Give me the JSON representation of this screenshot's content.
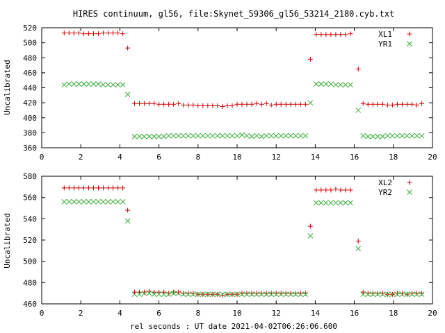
{
  "chart_data": {
    "title": "HIRES continuum, gl56, file:Skynet_59306_gl56_53214_2180.cyb.txt",
    "xlabel": "rel seconds : UT date 2021-04-02T06:26:06.600",
    "colors": {
      "series_a": "#cc0000",
      "series_b": "#33aa33",
      "axes": "#000000"
    },
    "panels": [
      {
        "type": "scatter",
        "ylabel": "Uncalibrated",
        "xlim": [
          0,
          20
        ],
        "ylim": [
          360,
          520
        ],
        "x_ticks": [
          "0",
          "2",
          "4",
          "6",
          "8",
          "10",
          "12",
          "14",
          "16",
          "18",
          "20"
        ],
        "y_ticks": [
          "360",
          "380",
          "400",
          "420",
          "440",
          "460",
          "480",
          "500",
          "520"
        ],
        "grid": false,
        "legend_position": "top-right",
        "series": [
          {
            "name": "XL1",
            "marker": "plus",
            "x": [
              1.15,
              1.4,
              1.65,
              1.9,
              2.15,
              2.4,
              2.65,
              2.9,
              3.15,
              3.4,
              3.65,
              3.9,
              4.15,
              4.4,
              4.75,
              5.0,
              5.25,
              5.5,
              5.75,
              6.0,
              6.25,
              6.5,
              6.75,
              7.0,
              7.25,
              7.5,
              7.75,
              8.0,
              8.25,
              8.5,
              8.75,
              9.0,
              9.25,
              9.5,
              9.75,
              10.0,
              10.25,
              10.5,
              10.75,
              11.0,
              11.25,
              11.5,
              11.75,
              12.0,
              12.25,
              12.5,
              12.75,
              13.0,
              13.25,
              13.5,
              13.75,
              14.05,
              14.3,
              14.55,
              14.8,
              15.05,
              15.3,
              15.55,
              15.8,
              16.2,
              16.45,
              16.7,
              16.95,
              17.2,
              17.45,
              17.7,
              17.95,
              18.2,
              18.45,
              18.7,
              18.95,
              19.2,
              19.45
            ],
            "y": [
              513,
              513,
              513,
              513,
              512,
              512,
              512,
              512,
              513,
              513,
              513,
              513,
              512,
              493,
              419,
              419,
              419,
              419,
              419,
              418,
              418,
              418,
              418,
              419,
              417,
              417,
              417,
              416,
              416,
              416,
              416,
              416,
              415,
              416,
              416,
              418,
              418,
              418,
              418,
              419,
              418,
              419,
              417,
              418,
              418,
              418,
              418,
              418,
              418,
              418,
              478,
              511,
              511,
              511,
              511,
              511,
              511,
              511,
              512,
              465,
              419,
              418,
              418,
              418,
              418,
              417,
              417,
              418,
              418,
              418,
              418,
              417,
              419
            ]
          },
          {
            "name": "YR1",
            "marker": "cross",
            "x": [
              1.15,
              1.4,
              1.65,
              1.9,
              2.15,
              2.4,
              2.65,
              2.9,
              3.15,
              3.4,
              3.65,
              3.9,
              4.15,
              4.4,
              4.75,
              5.0,
              5.25,
              5.5,
              5.75,
              6.0,
              6.25,
              6.5,
              6.75,
              7.0,
              7.25,
              7.5,
              7.75,
              8.0,
              8.25,
              8.5,
              8.75,
              9.0,
              9.25,
              9.5,
              9.75,
              10.0,
              10.25,
              10.5,
              10.75,
              11.0,
              11.25,
              11.5,
              11.75,
              12.0,
              12.25,
              12.5,
              12.75,
              13.0,
              13.25,
              13.5,
              13.75,
              14.05,
              14.3,
              14.55,
              14.8,
              15.05,
              15.3,
              15.55,
              15.8,
              16.2,
              16.45,
              16.7,
              16.95,
              17.2,
              17.45,
              17.7,
              17.95,
              18.2,
              18.45,
              18.7,
              18.95,
              19.2,
              19.45
            ],
            "y": [
              444,
              445,
              445,
              445,
              445,
              445,
              445,
              445,
              444,
              444,
              444,
              444,
              444,
              431,
              375,
              375,
              375,
              375,
              375,
              375,
              375,
              376,
              376,
              376,
              376,
              376,
              376,
              376,
              376,
              376,
              376,
              376,
              376,
              376,
              376,
              376,
              377,
              376,
              375,
              376,
              375,
              376,
              376,
              376,
              376,
              376,
              376,
              376,
              376,
              376,
              420,
              445,
              445,
              445,
              445,
              444,
              444,
              444,
              444,
              410,
              376,
              375,
              375,
              375,
              375,
              376,
              376,
              376,
              376,
              376,
              376,
              376,
              376
            ]
          }
        ]
      },
      {
        "type": "scatter",
        "ylabel": "Uncalibrated",
        "xlim": [
          0,
          20
        ],
        "ylim": [
          460,
          580
        ],
        "x_ticks": [
          "0",
          "2",
          "4",
          "6",
          "8",
          "10",
          "12",
          "14",
          "16",
          "18",
          "20"
        ],
        "y_ticks": [
          "460",
          "480",
          "500",
          "520",
          "540",
          "560",
          "580"
        ],
        "grid": false,
        "legend_position": "top-right",
        "series": [
          {
            "name": "XL2",
            "marker": "plus",
            "x": [
              1.15,
              1.4,
              1.65,
              1.9,
              2.15,
              2.4,
              2.65,
              2.9,
              3.15,
              3.4,
              3.65,
              3.9,
              4.15,
              4.4,
              4.75,
              5.0,
              5.25,
              5.5,
              5.75,
              6.0,
              6.25,
              6.5,
              6.75,
              7.0,
              7.25,
              7.5,
              7.75,
              8.0,
              8.25,
              8.5,
              8.75,
              9.0,
              9.25,
              9.5,
              9.75,
              10.0,
              10.25,
              10.5,
              10.75,
              11.0,
              11.25,
              11.5,
              11.75,
              12.0,
              12.25,
              12.5,
              12.75,
              13.0,
              13.25,
              13.5,
              13.75,
              14.05,
              14.3,
              14.55,
              14.8,
              15.05,
              15.3,
              15.55,
              15.8,
              16.2,
              16.45,
              16.7,
              16.95,
              17.2,
              17.45,
              17.7,
              17.95,
              18.2,
              18.45,
              18.7,
              18.95,
              19.2,
              19.45
            ],
            "y": [
              569,
              569,
              569,
              569,
              569,
              569,
              569,
              569,
              569,
              569,
              569,
              569,
              569,
              548,
              471,
              471,
              471,
              472,
              471,
              471,
              471,
              470,
              471,
              471,
              470,
              470,
              470,
              469,
              469,
              469,
              469,
              469,
              468,
              469,
              469,
              469,
              470,
              470,
              470,
              470,
              470,
              470,
              470,
              470,
              470,
              470,
              470,
              470,
              470,
              470,
              533,
              567,
              567,
              567,
              567,
              568,
              567,
              567,
              567,
              519,
              471,
              470,
              470,
              470,
              470,
              469,
              469,
              470,
              470,
              469,
              470,
              470,
              470
            ]
          },
          {
            "name": "YR2",
            "marker": "cross",
            "x": [
              1.15,
              1.4,
              1.65,
              1.9,
              2.15,
              2.4,
              2.65,
              2.9,
              3.15,
              3.4,
              3.65,
              3.9,
              4.15,
              4.4,
              4.75,
              5.0,
              5.25,
              5.5,
              5.75,
              6.0,
              6.25,
              6.5,
              6.75,
              7.0,
              7.25,
              7.5,
              7.75,
              8.0,
              8.25,
              8.5,
              8.75,
              9.0,
              9.25,
              9.5,
              9.75,
              10.0,
              10.25,
              10.5,
              10.75,
              11.0,
              11.25,
              11.5,
              11.75,
              12.0,
              12.25,
              12.5,
              12.75,
              13.0,
              13.25,
              13.5,
              13.75,
              14.05,
              14.3,
              14.55,
              14.8,
              15.05,
              15.3,
              15.55,
              15.8,
              16.2,
              16.45,
              16.7,
              16.95,
              17.2,
              17.45,
              17.7,
              17.95,
              18.2,
              18.45,
              18.7,
              18.95,
              19.2,
              19.45
            ],
            "y": [
              556,
              556,
              556,
              556,
              556,
              556,
              556,
              556,
              556,
              556,
              556,
              556,
              556,
              538,
              469,
              469,
              470,
              470,
              469,
              469,
              469,
              469,
              470,
              470,
              469,
              469,
              469,
              469,
              469,
              469,
              469,
              469,
              469,
              469,
              469,
              469,
              469,
              469,
              469,
              469,
              469,
              469,
              469,
              469,
              469,
              469,
              469,
              469,
              469,
              469,
              524,
              555,
              555,
              555,
              555,
              555,
              555,
              555,
              555,
              512,
              469,
              469,
              469,
              469,
              469,
              469,
              469,
              469,
              469,
              469,
              469,
              469,
              469
            ]
          }
        ]
      }
    ]
  }
}
